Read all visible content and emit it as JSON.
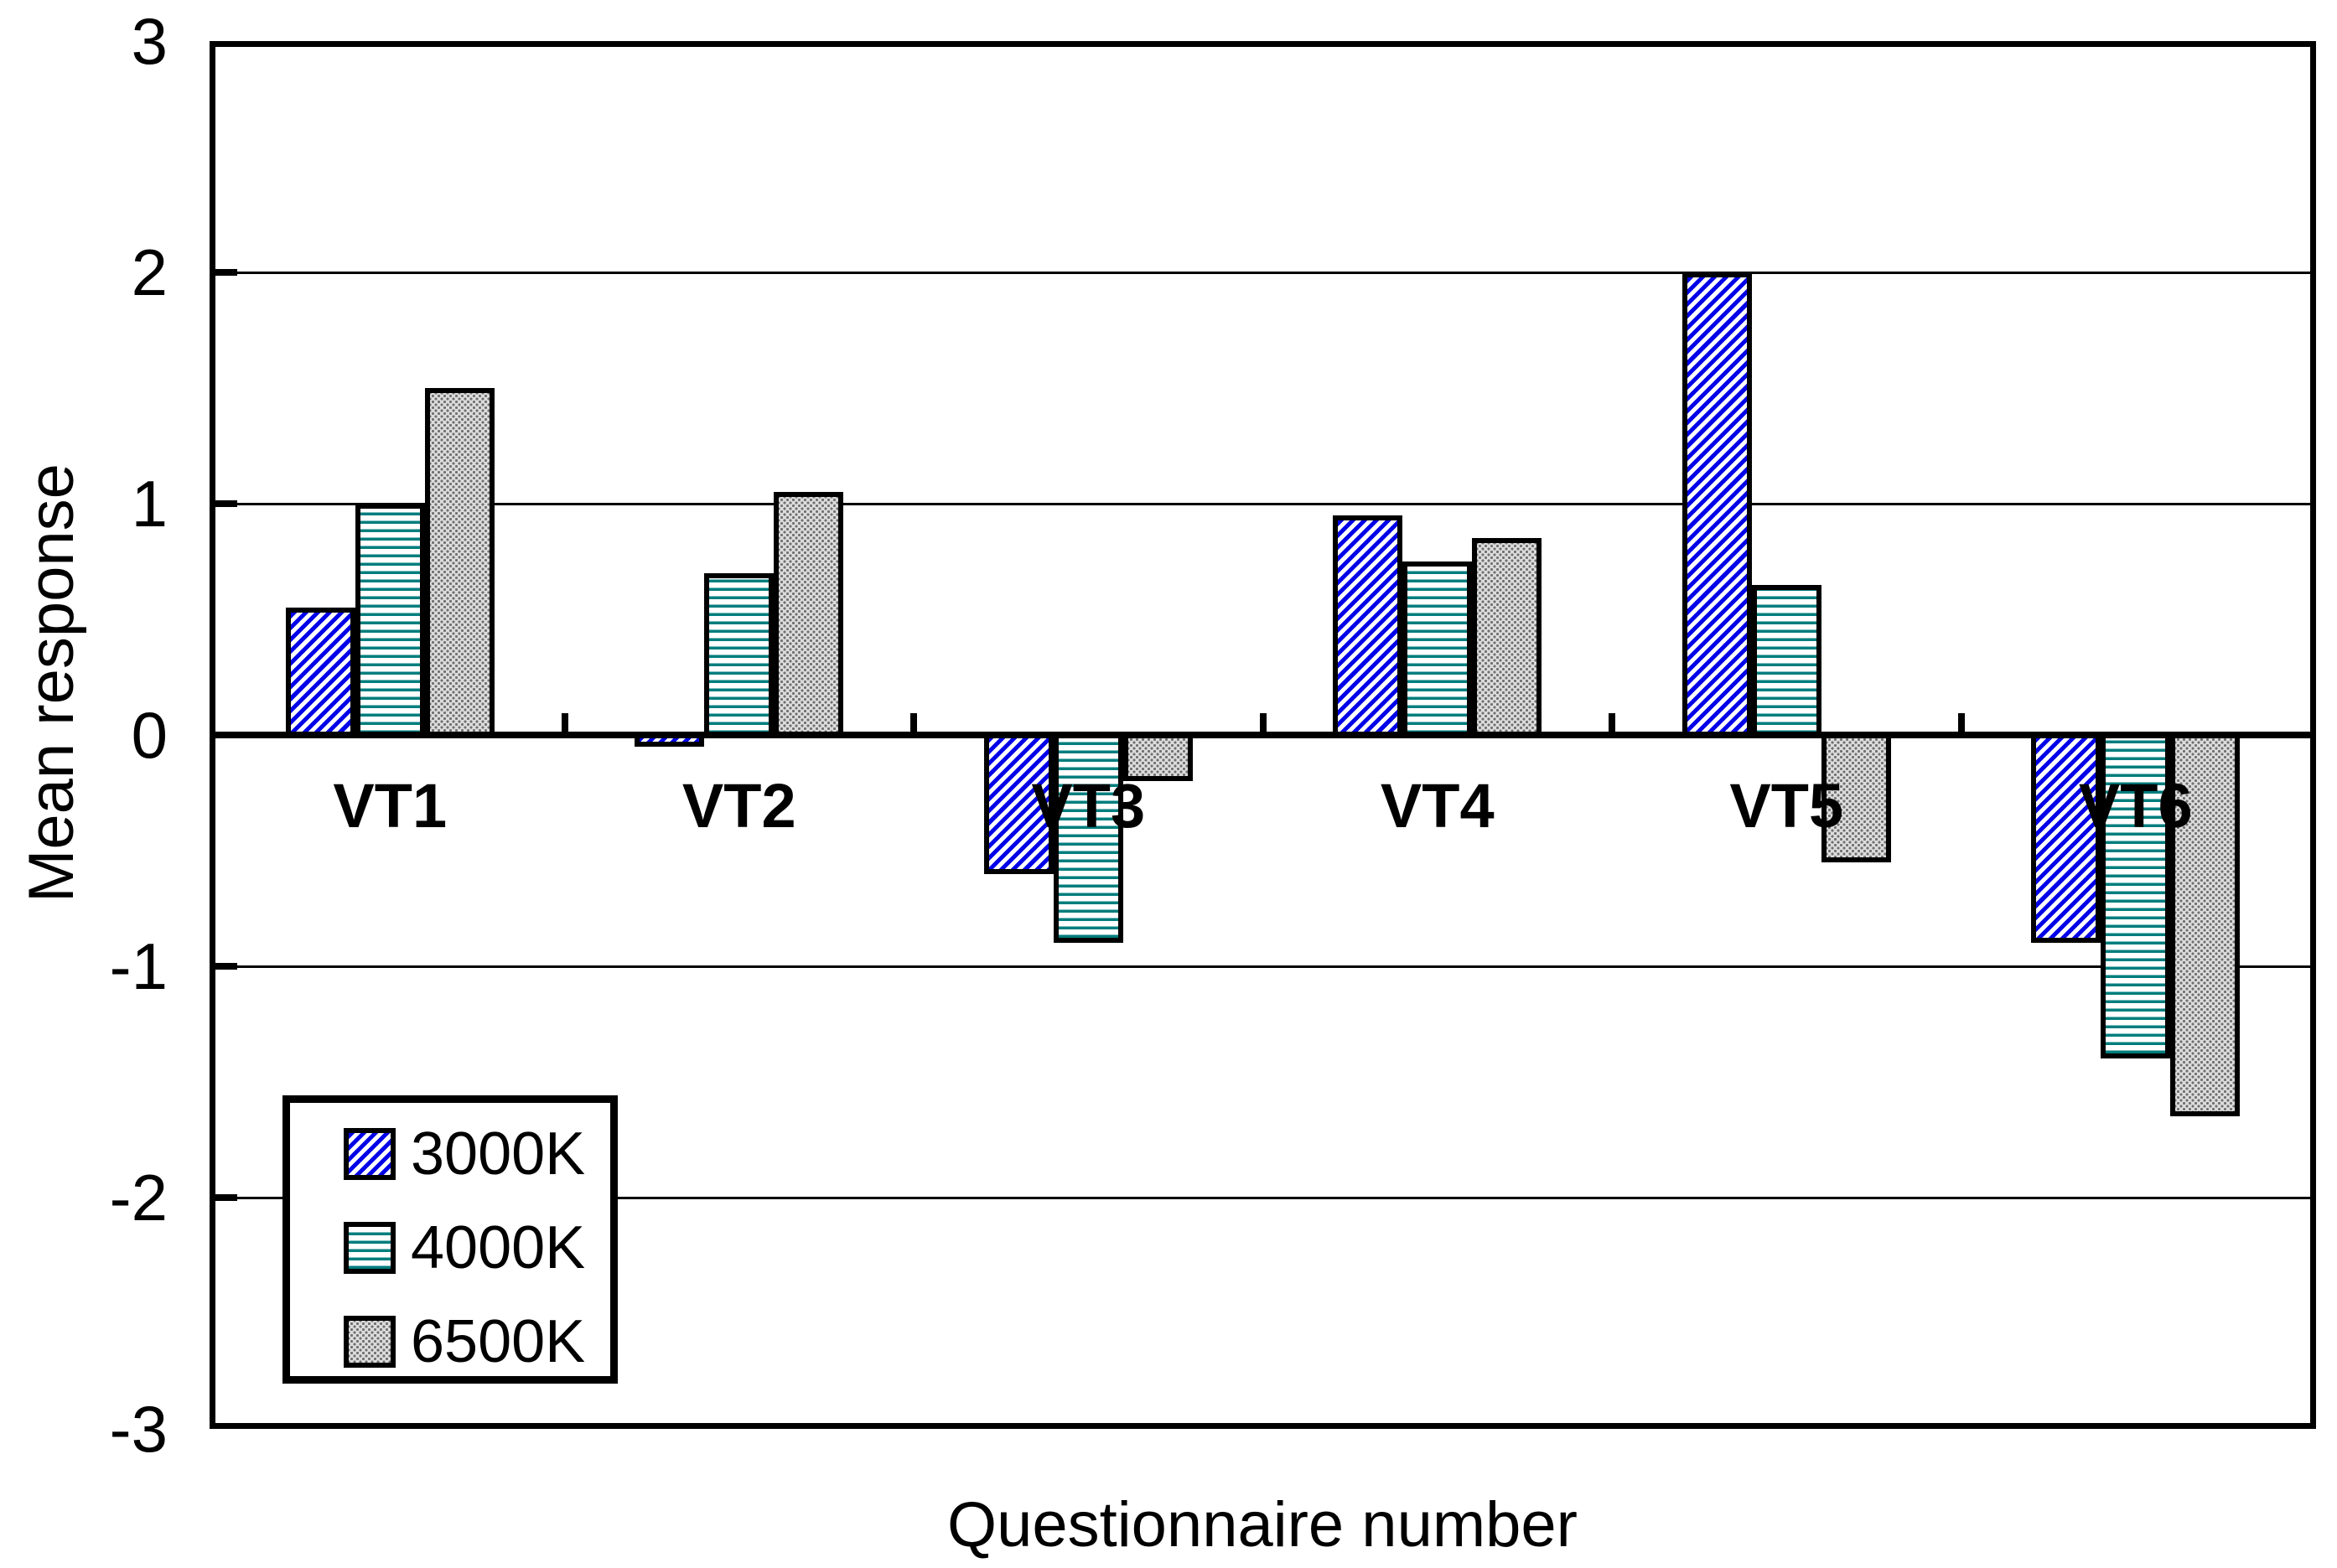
{
  "chart_data": {
    "type": "bar",
    "title": "",
    "xlabel": "Questionnaire number",
    "ylabel": "Mean response",
    "categories": [
      "VT1",
      "VT2",
      "VT3",
      "VT4",
      "VT5",
      "VT6"
    ],
    "series": [
      {
        "name": "3000K",
        "pattern": "blue-diagonal-hatch",
        "color": "#0202e8",
        "values": [
          0.55,
          -0.05,
          -0.6,
          0.95,
          2.0,
          -0.9
        ]
      },
      {
        "name": "4000K",
        "pattern": "teal-horizontal-lines",
        "color": "#007d7d",
        "values": [
          1.0,
          0.7,
          -0.9,
          0.75,
          0.65,
          -1.4
        ]
      },
      {
        "name": "6500K",
        "pattern": "gray-dotted",
        "color": "#a0a0a0",
        "values": [
          1.5,
          1.05,
          -0.2,
          0.85,
          -0.55,
          -1.65
        ]
      }
    ],
    "ylim": [
      -3,
      3
    ],
    "y_ticks": [
      "3",
      "2",
      "1",
      "0",
      "-1",
      "-2",
      "-3"
    ],
    "gridlines": "horizontal-at-integers",
    "legend_position": "inside-bottom-left",
    "axis_color": "#000000",
    "background_color": "#ffffff"
  }
}
